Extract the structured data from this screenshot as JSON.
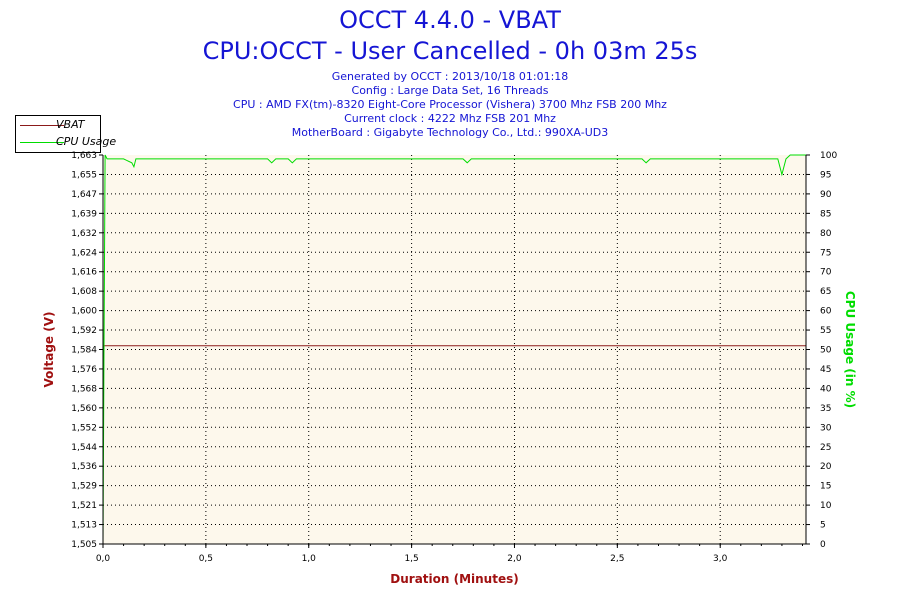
{
  "header": {
    "title": "OCCT 4.4.0 - VBAT",
    "subtitle": "CPU:OCCT - User Cancelled - 0h 03m 25s",
    "info": [
      "Generated by OCCT : 2013/10/18 01:01:18",
      "Config : Large Data Set, 16 Threads",
      "CPU : AMD FX(tm)-8320 Eight-Core Processor (Vishera) 3700 Mhz FSB 200 Mhz",
      "Current clock : 4222 Mhz FSB 201 Mhz",
      "MotherBoard : Gigabyte Technology Co., Ltd.: 990XA-UD3"
    ]
  },
  "legend": {
    "items": [
      {
        "label": "VBAT",
        "color": "#8b1a1a"
      },
      {
        "label": "CPU Usage",
        "color": "#00dd00"
      }
    ]
  },
  "chart_data": {
    "type": "line",
    "xlabel": "Duration (Minutes)",
    "ylabel": "Voltage (V)",
    "y2label": "CPU Usage (in %)",
    "xlim": [
      0,
      3.417
    ],
    "ylim": [
      1.505,
      1.663
    ],
    "y2lim": [
      0,
      100
    ],
    "x_ticks": [
      "0,0",
      "0,5",
      "1,0",
      "1,5",
      "2,0",
      "2,5",
      "3,0"
    ],
    "x_tick_values": [
      0,
      0.5,
      1.0,
      1.5,
      2.0,
      2.5,
      3.0
    ],
    "y_ticks": [
      "1,505",
      "1,513",
      "1,521",
      "1,529",
      "1,536",
      "1,544",
      "1,552",
      "1,560",
      "1,568",
      "1,576",
      "1,584",
      "1,592",
      "1,600",
      "1,608",
      "1,616",
      "1,624",
      "1,632",
      "1,639",
      "1,647",
      "1,655",
      "1,663"
    ],
    "y_tick_values": [
      1.505,
      1.513,
      1.521,
      1.529,
      1.536,
      1.544,
      1.552,
      1.56,
      1.568,
      1.576,
      1.584,
      1.592,
      1.6,
      1.608,
      1.616,
      1.624,
      1.632,
      1.639,
      1.647,
      1.655,
      1.663
    ],
    "y2_ticks": [
      "0",
      "5",
      "10",
      "15",
      "20",
      "25",
      "30",
      "35",
      "40",
      "45",
      "50",
      "55",
      "60",
      "65",
      "70",
      "75",
      "80",
      "85",
      "90",
      "95",
      "100"
    ],
    "y2_tick_values": [
      0,
      5,
      10,
      15,
      20,
      25,
      30,
      35,
      40,
      45,
      50,
      55,
      60,
      65,
      70,
      75,
      80,
      85,
      90,
      95,
      100
    ],
    "grid": true,
    "legend_position": "top-left",
    "colors": {
      "axis_title": "#a01010",
      "y2_title": "#00dd00",
      "plot_bg": "#fdf8ec",
      "title": "#1515d4"
    },
    "series": [
      {
        "name": "VBAT",
        "axis": "left",
        "color": "#8b1a1a",
        "x": [
          0,
          3.417
        ],
        "values": [
          1.5855,
          1.5855
        ]
      },
      {
        "name": "CPU Usage",
        "axis": "right",
        "color": "#00dd00",
        "x": [
          0,
          0.005,
          0.01,
          0.02,
          0.1,
          0.14,
          0.15,
          0.16,
          0.2,
          0.5,
          0.8,
          0.82,
          0.84,
          0.9,
          0.92,
          0.94,
          1.2,
          1.5,
          1.75,
          1.77,
          1.79,
          2.0,
          2.3,
          2.62,
          2.64,
          2.66,
          2.8,
          3.0,
          3.2,
          3.28,
          3.3,
          3.32,
          3.34,
          3.417
        ],
        "values": [
          0,
          50,
          100,
          99,
          99,
          98,
          97,
          99,
          99,
          99,
          99,
          98,
          99,
          99,
          98,
          99,
          99,
          99,
          99,
          98,
          99,
          99,
          99,
          99,
          98,
          99,
          99,
          99,
          99,
          99,
          95,
          99,
          100,
          100
        ]
      }
    ]
  }
}
